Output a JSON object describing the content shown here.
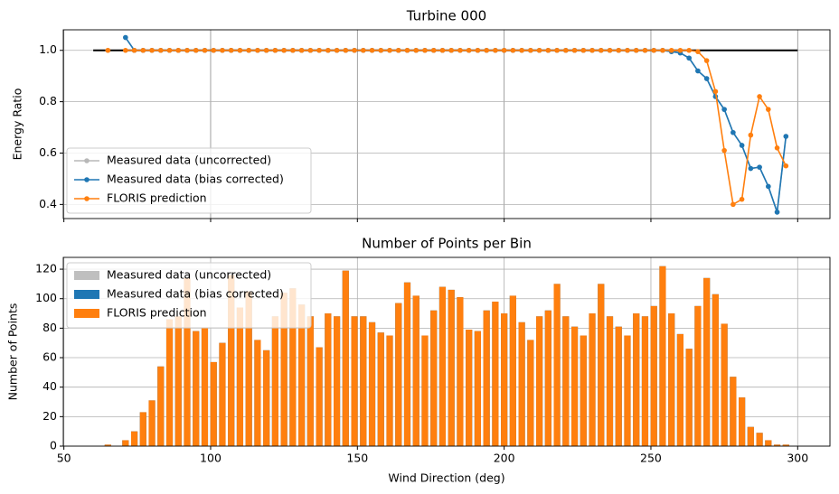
{
  "chart_data": [
    {
      "type": "line",
      "title": "Turbine 000",
      "ylabel": "Energy Ratio",
      "x": [
        65,
        68,
        71,
        74,
        77,
        80,
        83,
        86,
        89,
        92,
        95,
        98,
        101,
        104,
        107,
        110,
        113,
        116,
        119,
        122,
        125,
        128,
        131,
        134,
        137,
        140,
        143,
        146,
        149,
        152,
        155,
        158,
        161,
        164,
        167,
        170,
        173,
        176,
        179,
        182,
        185,
        188,
        191,
        194,
        197,
        200,
        203,
        206,
        209,
        212,
        215,
        218,
        221,
        224,
        227,
        230,
        233,
        236,
        239,
        242,
        245,
        248,
        251,
        254,
        257,
        260,
        263,
        266,
        269,
        272,
        275,
        278,
        281,
        284,
        287,
        290,
        293,
        296
      ],
      "series": [
        {
          "name": "Measured data (uncorrected)",
          "color": "#b8b8b8",
          "values": [
            1,
            null,
            1.05,
            1,
            1,
            1,
            1,
            1,
            1,
            1,
            1,
            1,
            1,
            1,
            1,
            1,
            1,
            1,
            1,
            1,
            1,
            1,
            1,
            1,
            1,
            1,
            1,
            1,
            1,
            1,
            1,
            1,
            1,
            1,
            1,
            1,
            1,
            1,
            1,
            1,
            1,
            1,
            1,
            1,
            1,
            1,
            1,
            1,
            1,
            1,
            1,
            1,
            1,
            1,
            1,
            1,
            1,
            1,
            1,
            1,
            1,
            1,
            1,
            1,
            0.995,
            0.99,
            0.97,
            0.92,
            0.89,
            0.82,
            0.77,
            0.68,
            0.63,
            0.54,
            0.545,
            0.47,
            0.37,
            0.665
          ]
        },
        {
          "name": "Measured data (bias corrected)",
          "color": "#1f77b4",
          "values": [
            null,
            null,
            1.05,
            1,
            1,
            1,
            1,
            1,
            1,
            1,
            1,
            1,
            1,
            1,
            1,
            1,
            1,
            1,
            1,
            1,
            1,
            1,
            1,
            1,
            1,
            1,
            1,
            1,
            1,
            1,
            1,
            1,
            1,
            1,
            1,
            1,
            1,
            1,
            1,
            1,
            1,
            1,
            1,
            1,
            1,
            1,
            1,
            1,
            1,
            1,
            1,
            1,
            1,
            1,
            1,
            1,
            1,
            1,
            1,
            1,
            1,
            1,
            1,
            1,
            0.995,
            0.99,
            0.97,
            0.92,
            0.89,
            0.82,
            0.77,
            0.68,
            0.63,
            0.54,
            0.545,
            0.47,
            0.37,
            0.665
          ]
        },
        {
          "name": "FLORIS prediction",
          "color": "#ff7f0e",
          "values": [
            1,
            null,
            1,
            1,
            1,
            1,
            1,
            1,
            1,
            1,
            1,
            1,
            1,
            1,
            1,
            1,
            1,
            1,
            1,
            1,
            1,
            1,
            1,
            1,
            1,
            1,
            1,
            1,
            1,
            1,
            1,
            1,
            1,
            1,
            1,
            1,
            1,
            1,
            1,
            1,
            1,
            1,
            1,
            1,
            1,
            1,
            1,
            1,
            1,
            1,
            1,
            1,
            1,
            1,
            1,
            1,
            1,
            1,
            1,
            1,
            1,
            1,
            1,
            1,
            1,
            1,
            1,
            0.995,
            0.96,
            0.84,
            0.61,
            0.4,
            0.42,
            0.67,
            0.82,
            0.77,
            0.62,
            0.55
          ]
        }
      ],
      "reference": {
        "x": [
          60,
          300
        ],
        "y": 1,
        "color": "#000000"
      },
      "xlim": [
        49.8,
        311
      ],
      "ylim": [
        0.345,
        1.08
      ],
      "xticks": [
        50,
        100,
        150,
        200,
        250,
        300
      ],
      "show_xticklabels": false,
      "yticks": [
        0.4,
        0.6,
        0.8,
        {
          "value": 1,
          "label": "1.0"
        }
      ],
      "grid": true,
      "legend": "lower left"
    },
    {
      "type": "bar",
      "title": "Number of Points per Bin",
      "xlabel": "Wind Direction (deg)",
      "ylabel": "Number of Points",
      "x": [
        65,
        68,
        71,
        74,
        77,
        80,
        83,
        86,
        89,
        92,
        95,
        98,
        101,
        104,
        107,
        110,
        113,
        116,
        119,
        122,
        125,
        128,
        131,
        134,
        137,
        140,
        143,
        146,
        149,
        152,
        155,
        158,
        161,
        164,
        167,
        170,
        173,
        176,
        179,
        182,
        185,
        188,
        191,
        194,
        197,
        200,
        203,
        206,
        209,
        212,
        215,
        218,
        221,
        224,
        227,
        230,
        233,
        236,
        239,
        242,
        245,
        248,
        251,
        254,
        257,
        260,
        263,
        266,
        269,
        272,
        275,
        278,
        281,
        284,
        287,
        290,
        293,
        296
      ],
      "bar_width": 2.2,
      "series": [
        {
          "name": "Measured data (uncorrected)",
          "color": "#bfbfbf",
          "values": [
            1,
            0,
            4,
            10,
            23,
            31,
            54,
            86,
            88,
            114,
            78,
            80,
            57,
            70,
            116,
            94,
            105,
            72,
            65,
            88,
            104,
            107,
            96,
            88,
            67,
            90,
            88,
            119,
            88,
            88,
            84,
            77,
            75,
            97,
            111,
            102,
            75,
            92,
            108,
            106,
            101,
            79,
            78,
            92,
            98,
            90,
            102,
            84,
            72,
            88,
            92,
            110,
            88,
            81,
            75,
            90,
            110,
            88,
            81,
            75,
            90,
            88,
            95,
            122,
            90,
            76,
            66,
            95,
            114,
            103,
            83,
            47,
            33,
            13,
            9,
            4,
            1,
            1
          ]
        },
        {
          "name": "Measured data (bias corrected)",
          "color": "#1f77b4",
          "values": [
            1,
            0,
            4,
            10,
            23,
            31,
            54,
            86,
            88,
            114,
            78,
            80,
            57,
            70,
            116,
            94,
            105,
            72,
            65,
            88,
            104,
            107,
            96,
            88,
            67,
            90,
            88,
            119,
            88,
            88,
            84,
            77,
            75,
            97,
            111,
            102,
            75,
            92,
            108,
            106,
            101,
            79,
            78,
            92,
            98,
            90,
            102,
            84,
            72,
            88,
            92,
            110,
            88,
            81,
            75,
            90,
            110,
            88,
            81,
            75,
            90,
            88,
            95,
            122,
            90,
            76,
            66,
            95,
            114,
            103,
            83,
            47,
            33,
            13,
            9,
            4,
            1,
            1
          ]
        },
        {
          "name": "FLORIS prediction",
          "color": "#ff7f0e",
          "values": [
            1,
            0,
            4,
            10,
            23,
            31,
            54,
            86,
            88,
            114,
            78,
            80,
            57,
            70,
            116,
            94,
            105,
            72,
            65,
            88,
            104,
            107,
            96,
            88,
            67,
            90,
            88,
            119,
            88,
            88,
            84,
            77,
            75,
            97,
            111,
            102,
            75,
            92,
            108,
            106,
            101,
            79,
            78,
            92,
            98,
            90,
            102,
            84,
            72,
            88,
            92,
            110,
            88,
            81,
            75,
            90,
            110,
            88,
            81,
            75,
            90,
            88,
            95,
            122,
            90,
            76,
            66,
            95,
            114,
            103,
            83,
            47,
            33,
            13,
            9,
            4,
            1,
            1
          ]
        }
      ],
      "xlim": [
        49.8,
        311
      ],
      "ylim": [
        0,
        128
      ],
      "xticks": [
        50,
        100,
        150,
        200,
        250,
        300
      ],
      "show_xticklabels": true,
      "yticks": [
        0,
        20,
        40,
        60,
        80,
        100,
        120
      ],
      "grid": true,
      "legend": "upper left"
    }
  ]
}
